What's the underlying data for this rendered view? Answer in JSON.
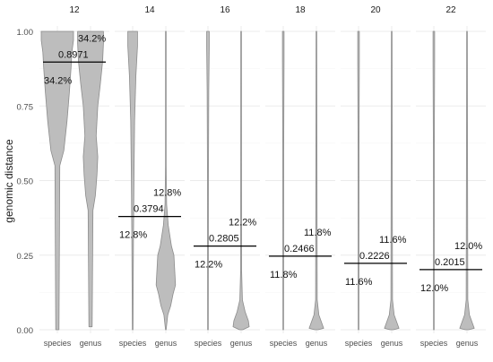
{
  "chart_data": {
    "type": "violin",
    "ylabel": "genomic distance",
    "ylim": [
      0,
      1
    ],
    "yticks": [
      0.0,
      0.25,
      0.5,
      0.75,
      1.0
    ],
    "ytick_labels": [
      "0.00",
      "0.25",
      "0.50",
      "0.75",
      "1.00"
    ],
    "categories": [
      "species",
      "genus"
    ],
    "grid": true,
    "colors": {
      "violin_fill": "#bdbdbd",
      "violin_stroke": "#8c8c8c",
      "threshold_line": "#000000",
      "grid": "#ebebeb"
    },
    "panels": [
      {
        "label": "12",
        "threshold": 0.8971,
        "threshold_label": "0.8971",
        "species_pct": "34.2%",
        "genus_pct": "34.2%",
        "species_density": [
          [
            0.0,
            0.1
          ],
          [
            0.55,
            0.15
          ],
          [
            0.6,
            0.4
          ],
          [
            0.7,
            0.6
          ],
          [
            0.8,
            0.75
          ],
          [
            0.88,
            0.85
          ],
          [
            0.93,
            0.9
          ],
          [
            0.97,
            1.0
          ],
          [
            1.0,
            1.0
          ]
        ],
        "genus_density": [
          [
            0.01,
            0.1
          ],
          [
            0.4,
            0.15
          ],
          [
            0.45,
            0.3
          ],
          [
            0.52,
            0.4
          ],
          [
            0.58,
            0.45
          ],
          [
            0.65,
            0.35
          ],
          [
            0.75,
            0.45
          ],
          [
            0.82,
            0.6
          ],
          [
            0.9,
            0.75
          ],
          [
            0.96,
            0.8
          ],
          [
            1.0,
            0.8
          ]
        ]
      },
      {
        "label": "14",
        "threshold": 0.3794,
        "threshold_label": "0.3794",
        "species_pct": "12.8%",
        "genus_pct": "12.8%",
        "species_density": [
          [
            0.0,
            0.02
          ],
          [
            0.3,
            0.05
          ],
          [
            0.5,
            0.08
          ],
          [
            0.7,
            0.12
          ],
          [
            0.85,
            0.2
          ],
          [
            0.95,
            0.3
          ],
          [
            1.0,
            0.3
          ]
        ],
        "genus_density": [
          [
            0.0,
            0.02
          ],
          [
            0.05,
            0.12
          ],
          [
            0.08,
            0.3
          ],
          [
            0.12,
            0.45
          ],
          [
            0.15,
            0.6
          ],
          [
            0.2,
            0.55
          ],
          [
            0.25,
            0.5
          ],
          [
            0.28,
            0.35
          ],
          [
            0.35,
            0.15
          ],
          [
            0.42,
            0.05
          ],
          [
            0.55,
            0.02
          ],
          [
            1.0,
            0.02
          ]
        ]
      },
      {
        "label": "16",
        "threshold": 0.2805,
        "threshold_label": "0.2805",
        "species_pct": "12.2%",
        "genus_pct": "12.2%",
        "species_density": [
          [
            0.0,
            0.02
          ],
          [
            0.5,
            0.03
          ],
          [
            0.8,
            0.05
          ],
          [
            0.95,
            0.08
          ],
          [
            1.0,
            0.08
          ]
        ],
        "genus_density": [
          [
            0.0,
            0.1
          ],
          [
            0.01,
            0.5
          ],
          [
            0.03,
            0.45
          ],
          [
            0.06,
            0.25
          ],
          [
            0.1,
            0.08
          ],
          [
            0.2,
            0.03
          ],
          [
            1.0,
            0.02
          ]
        ]
      },
      {
        "label": "18",
        "threshold": 0.2466,
        "threshold_label": "0.2466",
        "species_pct": "11.8%",
        "genus_pct": "11.8%",
        "species_density": [
          [
            0.0,
            0.02
          ],
          [
            0.6,
            0.03
          ],
          [
            0.9,
            0.05
          ],
          [
            1.0,
            0.05
          ]
        ],
        "genus_density": [
          [
            0.0,
            0.1
          ],
          [
            0.005,
            0.45
          ],
          [
            0.02,
            0.35
          ],
          [
            0.05,
            0.15
          ],
          [
            0.1,
            0.05
          ],
          [
            1.0,
            0.02
          ]
        ]
      },
      {
        "label": "20",
        "threshold": 0.2226,
        "threshold_label": "0.2226",
        "species_pct": "11.6%",
        "genus_pct": "11.6%",
        "species_density": [
          [
            0.0,
            0.02
          ],
          [
            0.6,
            0.03
          ],
          [
            0.9,
            0.05
          ],
          [
            1.0,
            0.05
          ]
        ],
        "genus_density": [
          [
            0.0,
            0.1
          ],
          [
            0.005,
            0.45
          ],
          [
            0.02,
            0.35
          ],
          [
            0.05,
            0.15
          ],
          [
            0.1,
            0.05
          ],
          [
            1.0,
            0.02
          ]
        ]
      },
      {
        "label": "22",
        "threshold": 0.2015,
        "threshold_label": "0.2015",
        "species_pct": "12.0%",
        "genus_pct": "12.0%",
        "species_density": [
          [
            0.0,
            0.02
          ],
          [
            0.6,
            0.03
          ],
          [
            0.9,
            0.05
          ],
          [
            1.0,
            0.05
          ]
        ],
        "genus_density": [
          [
            0.0,
            0.1
          ],
          [
            0.005,
            0.45
          ],
          [
            0.02,
            0.35
          ],
          [
            0.05,
            0.15
          ],
          [
            0.1,
            0.05
          ],
          [
            1.0,
            0.02
          ]
        ]
      }
    ]
  }
}
